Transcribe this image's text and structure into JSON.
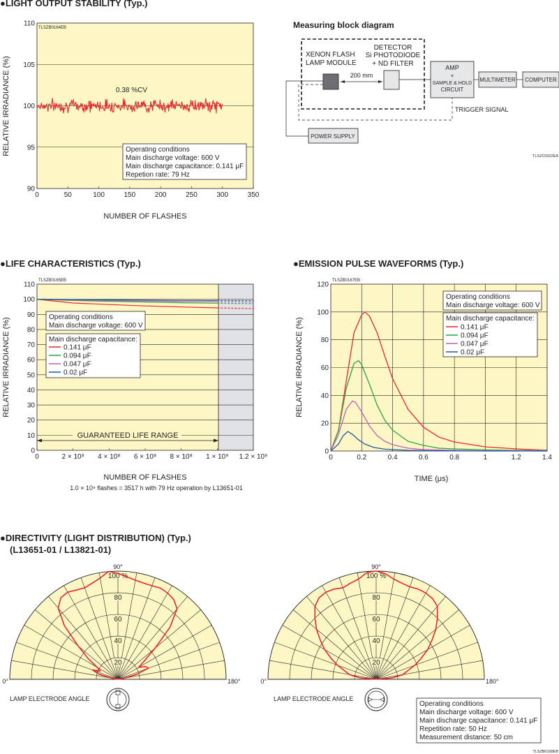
{
  "headings": {
    "stability": "●LIGHT OUTPUT STABILITY (Typ.)",
    "life": "●LIFE CHARACTERISTICS (Typ.)",
    "pulse": "●EMISSION PULSE WAVEFORMS (Typ.)",
    "directivity_1": "●DIRECTIVITY (LIGHT DISTRIBUTION) (Typ.)",
    "directivity_2": "(L13651-01 / L13821-01)"
  },
  "colors": {
    "plot_bg": "#fdf7c6",
    "red": "#e8262b",
    "green": "#2ba24a",
    "violet": "#c45cb4",
    "blue": "#1f5aa8",
    "gray_zone": "#e0e2e6"
  },
  "block_diagram": {
    "title": "Measuring block diagram",
    "module_label_1": "XENON FLASH",
    "module_label_2": "LAMP MODULE",
    "detector_1": "DETECTOR",
    "detector_2": "Si PHOTODIODE",
    "detector_3": "+ ND FILTER",
    "distance": "200 mm",
    "amp_1": "AMP",
    "amp_2": "+",
    "amp_3": "SAMPLE & HOLD",
    "amp_4": "CIRCUIT",
    "multimeter": "MULTIMETER",
    "computer": "COMPUTER",
    "trigger": "TRIGGER SIGNAL",
    "power": "POWER SUPPLY",
    "code": "TLSZC0022EA"
  },
  "chart_data": [
    {
      "type": "line",
      "code": "TLSZB0164EB",
      "xlabel": "NUMBER OF FLASHES",
      "ylabel": "RELATIVE IRRADIANCE (%)",
      "xlim": [
        0,
        350
      ],
      "ylim": [
        90,
        110
      ],
      "x_ticks": [
        "0",
        "50",
        "100",
        "150",
        "200",
        "250",
        "300",
        "350"
      ],
      "y_ticks": [
        "90",
        "95",
        "100",
        "105",
        "110"
      ],
      "grid": "horizontal",
      "annotation": "0.38 %CV",
      "conditions": [
        "Operating conditions",
        "Main discharge voltage: 600 V",
        "Main discharge capacitance: 0.141 μF",
        "Repetion rate: 79 Hz"
      ],
      "series": [
        {
          "color": "red",
          "x_range": [
            0,
            300
          ],
          "mean": 100,
          "cv_percent": 0.38
        }
      ]
    },
    {
      "type": "line",
      "code": "TLSZB0165EB",
      "xlabel": "NUMBER OF FLASHES",
      "ylabel": "RELATIVE IRRADIANCE (%)",
      "xlim": [
        0,
        1200000000.0
      ],
      "ylim": [
        0,
        110
      ],
      "x_ticks": [
        "0",
        "2 × 10⁸",
        "4 × 10⁸",
        "6 × 10⁸",
        "8 × 10⁸",
        "1 × 10⁹",
        "1.2 × 10⁹"
      ],
      "y_ticks": [
        "0",
        "10",
        "20",
        "30",
        "40",
        "50",
        "60",
        "70",
        "80",
        "90",
        "100",
        "110"
      ],
      "grid": "horizontal",
      "guaranteed_range_label": "GUARANTEED LIFE RANGE",
      "guaranteed_range": [
        0,
        1000000000.0
      ],
      "footnote": "1.0 × 10⁹ flashes = 3517 h with 79 Hz operation by L13651-01",
      "conditions": [
        "Operating conditions",
        "Main discharge voltage: 600 V"
      ],
      "legend_title": "Main discharge capacitance:",
      "series": [
        {
          "name": "0.141 μF",
          "color": "red",
          "x": [
            0,
            200000000.0,
            400000000.0,
            600000000.0,
            800000000.0,
            1000000000.0,
            1200000000.0
          ],
          "values": [
            100,
            97.5,
            96.5,
            95.6,
            94.9,
            94.3,
            93.8
          ]
        },
        {
          "name": "0.094 μF",
          "color": "green",
          "x": [
            0,
            200000000.0,
            400000000.0,
            600000000.0,
            800000000.0,
            1000000000.0,
            1200000000.0
          ],
          "values": [
            100,
            99.2,
            98.6,
            98.1,
            97.7,
            97.4,
            97.1
          ]
        },
        {
          "name": "0.047 μF",
          "color": "violet",
          "x": [
            0,
            200000000.0,
            400000000.0,
            600000000.0,
            800000000.0,
            1000000000.0,
            1200000000.0
          ],
          "values": [
            100,
            99.5,
            99.2,
            98.8,
            98.6,
            98.4,
            98.2
          ]
        },
        {
          "name": "0.02 μF",
          "color": "blue",
          "x": [
            0,
            200000000.0,
            400000000.0,
            600000000.0,
            800000000.0,
            1000000000.0,
            1200000000.0
          ],
          "values": [
            100,
            99.8,
            99.6,
            99.4,
            99.3,
            99.2,
            99.1
          ]
        }
      ]
    },
    {
      "type": "line",
      "code": "TLSZB0167EB",
      "xlabel": "TIME (μs)",
      "ylabel": "RELATIVE IRRADIANCE  (%)",
      "xlim": [
        0,
        1.4
      ],
      "ylim": [
        0,
        120
      ],
      "x_ticks": [
        "0",
        "0.2",
        "0.4",
        "0.6",
        "0.8",
        "1",
        "1.2",
        "1.4"
      ],
      "y_ticks": [
        "0",
        "20",
        "40",
        "60",
        "80",
        "100",
        "120"
      ],
      "grid": "both",
      "conditions": [
        "Operating conditions",
        "Main discharge voltage: 600 V"
      ],
      "legend_title": "Main discharge capacitance:",
      "series": [
        {
          "name": "0.141 μF",
          "color": "red",
          "x": [
            0,
            0.05,
            0.1,
            0.15,
            0.2,
            0.22,
            0.25,
            0.3,
            0.35,
            0.4,
            0.5,
            0.6,
            0.7,
            0.8,
            1.0,
            1.2,
            1.4
          ],
          "values": [
            0,
            15,
            50,
            85,
            98,
            100,
            97,
            85,
            68,
            52,
            30,
            17,
            10,
            6.5,
            3,
            1.5,
            0.5
          ]
        },
        {
          "name": "0.094 μF",
          "color": "green",
          "x": [
            0,
            0.05,
            0.1,
            0.15,
            0.18,
            0.2,
            0.25,
            0.3,
            0.35,
            0.4,
            0.5,
            0.6,
            0.7,
            0.8,
            1.0,
            1.2,
            1.4
          ],
          "values": [
            0,
            15,
            45,
            63,
            65,
            62,
            48,
            33,
            22,
            15,
            7,
            4,
            2,
            1.5,
            0.8,
            0.4,
            0.2
          ]
        },
        {
          "name": "0.047 μF",
          "color": "violet",
          "x": [
            0,
            0.05,
            0.1,
            0.14,
            0.16,
            0.2,
            0.25,
            0.3,
            0.35,
            0.4,
            0.5,
            0.6,
            0.8,
            1.0,
            1.4
          ],
          "values": [
            0,
            12,
            30,
            36,
            35,
            28,
            18,
            11,
            7,
            4.5,
            2,
            1,
            0.5,
            0.2,
            0
          ]
        },
        {
          "name": "0.02 μF",
          "color": "blue",
          "x": [
            0,
            0.05,
            0.08,
            0.11,
            0.14,
            0.18,
            0.22,
            0.28,
            0.35,
            0.5,
            0.7,
            1.0,
            1.4
          ],
          "values": [
            0,
            5,
            11,
            14,
            12,
            8,
            5,
            2.5,
            1.3,
            0.5,
            0.2,
            0,
            0
          ]
        }
      ]
    },
    {
      "type": "polar",
      "code": "TLSZB0168EB",
      "diagrams": [
        {
          "caption": "LAMP ELECTRODE ANGLE",
          "orientation": "vertical"
        },
        {
          "caption": "LAMP ELECTRODE ANGLE",
          "orientation": "horizontal"
        }
      ],
      "angle_labels": [
        "0°",
        "90°",
        "180°"
      ],
      "radial_ticks": [
        "20",
        "40",
        "60",
        "80",
        "100 %"
      ],
      "rlim": [
        0,
        100
      ],
      "conditions": [
        "Operating conditions",
        "Main discharge voltage: 600 V",
        "Main discharge capacitance: 0.141 μF",
        "Repetition rate: 50 Hz",
        "Measurement distance: 50 cm"
      ],
      "series": [
        {
          "color": "red",
          "angles": [
            10,
            15,
            20,
            25,
            30,
            35,
            40,
            45,
            50,
            55,
            60,
            65,
            70,
            75,
            80,
            85,
            90,
            95,
            100,
            105,
            110,
            115,
            120,
            125,
            130,
            135,
            140,
            145,
            150,
            155,
            160,
            165,
            170
          ],
          "values": [
            5,
            18,
            25,
            18,
            22,
            34,
            48,
            70,
            86,
            92,
            93,
            91,
            90,
            92,
            95,
            100,
            98,
            95,
            93,
            92,
            92,
            93,
            92,
            90,
            85,
            68,
            45,
            30,
            22,
            28,
            30,
            18,
            5
          ]
        },
        {
          "color": "red",
          "angles": [
            5,
            10,
            15,
            20,
            25,
            30,
            35,
            40,
            45,
            50,
            55,
            60,
            65,
            70,
            75,
            80,
            85,
            90,
            95,
            100,
            105,
            110,
            115,
            120,
            125,
            130,
            135,
            140,
            145,
            150,
            155,
            160,
            165,
            170,
            175
          ],
          "values": [
            15,
            25,
            30,
            38,
            46,
            55,
            63,
            72,
            80,
            88,
            92,
            93,
            92,
            90,
            92,
            94,
            99,
            100,
            98,
            94,
            92,
            91,
            92,
            92,
            91,
            88,
            80,
            72,
            63,
            55,
            46,
            38,
            30,
            25,
            15
          ]
        }
      ]
    }
  ]
}
